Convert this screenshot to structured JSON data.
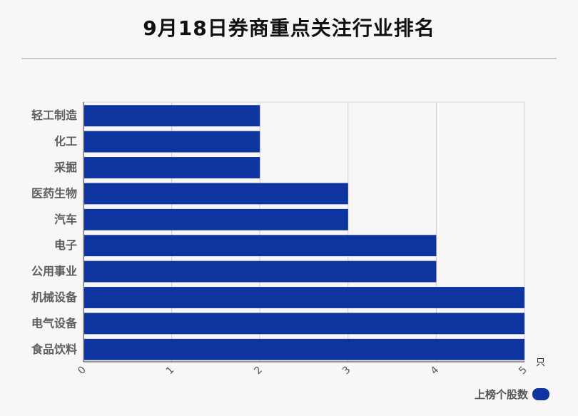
{
  "title": "9月18日券商重点关注行业排名",
  "chart_data": {
    "type": "bar",
    "orientation": "horizontal",
    "categories": [
      "轻工制造",
      "化工",
      "采掘",
      "医药生物",
      "汽车",
      "电子",
      "公用事业",
      "机械设备",
      "电气设备",
      "食品饮料"
    ],
    "series": [
      {
        "name": "上榜个股数",
        "values": [
          2,
          2,
          2,
          3,
          3,
          4,
          4,
          5,
          5,
          5
        ],
        "color": "#0e34a0"
      }
    ],
    "xlim": [
      0,
      5
    ],
    "xticks": [
      "0",
      "1",
      "2",
      "3",
      "4",
      "5"
    ],
    "x_unit": "只",
    "grid": true,
    "legend": "bottom-right"
  }
}
